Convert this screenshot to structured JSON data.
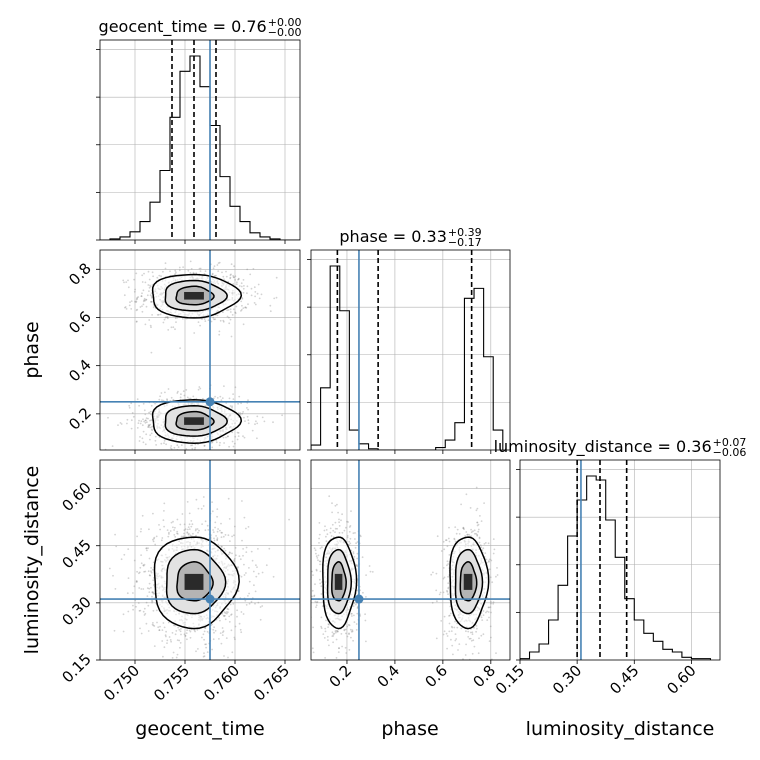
{
  "colors": {
    "truth": "#4682b4",
    "frame": "#000000",
    "grid": "#b0b0b0",
    "scatter": "#808080"
  },
  "chart_data": {
    "type": "corner",
    "grid": true,
    "quantile_line_style": "dashed",
    "truth": {
      "geocent_time": 0.7575,
      "phase": 0.25,
      "luminosity_distance": 0.31
    },
    "titles": [
      {
        "param": "geocent_time",
        "text": "geocent_time = 0.76",
        "sup": "+0.00",
        "sub": "−0.00"
      },
      {
        "param": "phase",
        "text": "phase = 0.33",
        "sup": "+0.39",
        "sub": "−0.17"
      },
      {
        "param": "luminosity_distance",
        "text": "luminosity_distance = 0.36",
        "sup": "+0.07",
        "sub": "−0.06"
      }
    ],
    "axis_labels": {
      "geocent_time": "geocent_time",
      "phase": "phase",
      "luminosity_distance": "luminosity_distance"
    },
    "ranges": {
      "geocent_time": [
        0.7465,
        0.7665
      ],
      "phase": [
        0.05,
        0.88
      ],
      "luminosity_distance": [
        0.15,
        0.675
      ]
    },
    "ticks": {
      "geocent_time": [
        "0.750",
        "0.755",
        "0.760",
        "0.765"
      ],
      "phase": [
        "0.2",
        "0.4",
        "0.6",
        "0.8"
      ],
      "luminosity_distance": [
        "0.15",
        "0.30",
        "0.45",
        "0.60"
      ]
    },
    "histograms": {
      "geocent_time": {
        "bin_edges": [
          0.7465,
          0.7475,
          0.7485,
          0.7495,
          0.7505,
          0.7515,
          0.7525,
          0.7535,
          0.7545,
          0.7555,
          0.7565,
          0.7575,
          0.7585,
          0.7595,
          0.7605,
          0.7615,
          0.7625,
          0.7635,
          0.7645,
          0.7655,
          0.7665
        ],
        "counts": [
          0,
          1,
          3,
          8,
          18,
          37,
          68,
          120,
          165,
          180,
          150,
          112,
          62,
          33,
          18,
          7,
          3,
          1,
          0,
          0
        ],
        "quantiles": [
          0.7537,
          0.7559,
          0.7581
        ]
      },
      "phase": {
        "bin_edges": [
          0.05,
          0.09,
          0.13,
          0.17,
          0.21,
          0.25,
          0.29,
          0.33,
          0.37,
          0.41,
          0.45,
          0.49,
          0.53,
          0.57,
          0.61,
          0.65,
          0.69,
          0.73,
          0.77,
          0.81,
          0.85
        ],
        "counts": [
          4,
          50,
          148,
          112,
          16,
          5,
          1,
          0,
          0,
          0,
          0,
          0,
          0,
          2,
          8,
          22,
          122,
          130,
          75,
          16
        ],
        "quantiles": [
          0.16,
          0.33,
          0.72
        ]
      },
      "luminosity_distance": {
        "bin_edges": [
          0.15,
          0.175,
          0.2,
          0.225,
          0.25,
          0.275,
          0.3,
          0.325,
          0.35,
          0.375,
          0.4,
          0.425,
          0.45,
          0.475,
          0.5,
          0.525,
          0.55,
          0.575,
          0.6,
          0.625,
          0.65
        ],
        "counts": [
          1,
          6,
          12,
          30,
          56,
          93,
          120,
          138,
          135,
          105,
          77,
          46,
          30,
          20,
          14,
          8,
          6,
          2,
          1,
          1
        ],
        "quantiles": [
          0.3,
          0.36,
          0.43
        ]
      }
    }
  }
}
